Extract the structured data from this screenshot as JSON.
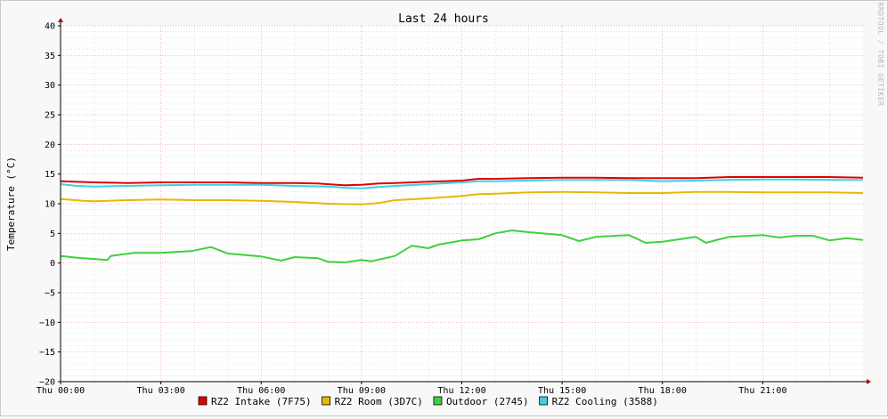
{
  "chart_data": {
    "type": "line",
    "title": "Last 24 hours",
    "ylabel": "Temperature (°C)",
    "watermark": "RRDTOOL / TOBI OETIKER",
    "ylim": [
      -20,
      40
    ],
    "y_ticks": [
      40,
      35,
      30,
      25,
      20,
      15,
      10,
      5,
      0,
      -5,
      -10,
      -15,
      -20
    ],
    "y_tick_labels": [
      "40",
      "35",
      "30",
      "25",
      "20",
      "15",
      "10",
      "5",
      "0",
      "−5",
      "−10",
      "−15",
      "−20"
    ],
    "xlim_hours": [
      0,
      24
    ],
    "x_ticks_hours": [
      0,
      3,
      6,
      9,
      12,
      15,
      18,
      21
    ],
    "x_tick_labels": [
      "Thu 00:00",
      "Thu 03:00",
      "Thu 06:00",
      "Thu 09:00",
      "Thu 12:00",
      "Thu 15:00",
      "Thu 18:00",
      "Thu 21:00"
    ],
    "grid": true,
    "legend_position": "bottom",
    "series": [
      {
        "name": "RZ2 Intake (7F75)",
        "color": "#e00000",
        "x": [
          0,
          1,
          2,
          3,
          4,
          5,
          6,
          7,
          7.7,
          8.5,
          9,
          9.5,
          10,
          11,
          12,
          12.5,
          13,
          14,
          15,
          16,
          17,
          18,
          19,
          20,
          21,
          22,
          23,
          24
        ],
        "y": [
          13.8,
          13.6,
          13.5,
          13.6,
          13.6,
          13.6,
          13.5,
          13.5,
          13.4,
          13.1,
          13.2,
          13.4,
          13.5,
          13.7,
          13.9,
          14.2,
          14.2,
          14.3,
          14.4,
          14.4,
          14.3,
          14.3,
          14.3,
          14.5,
          14.5,
          14.5,
          14.5,
          14.4
        ]
      },
      {
        "name": "RZ2 Room (3D7C)",
        "color": "#e8b800",
        "x": [
          0,
          0.7,
          1,
          2,
          3,
          4,
          5,
          6,
          7,
          8,
          9,
          9.5,
          10,
          11,
          12,
          12.5,
          13,
          14,
          15,
          16,
          17,
          18,
          19,
          20,
          21,
          22,
          23,
          24
        ],
        "y": [
          10.8,
          10.5,
          10.4,
          10.6,
          10.7,
          10.6,
          10.6,
          10.5,
          10.3,
          10.0,
          9.9,
          10.1,
          10.6,
          10.9,
          11.3,
          11.6,
          11.7,
          11.9,
          12.0,
          11.9,
          11.8,
          11.8,
          12.0,
          12.0,
          11.9,
          11.9,
          11.9,
          11.8
        ]
      },
      {
        "name": "Outdoor (2745)",
        "color": "#40d040",
        "x": [
          0,
          0.5,
          1.4,
          1.5,
          2.2,
          3,
          3.9,
          4.5,
          5,
          6,
          6.6,
          7,
          7.7,
          8,
          8.5,
          9,
          9.3,
          10,
          10.5,
          11,
          11.3,
          12,
          12.5,
          13,
          13.5,
          14,
          15,
          15.5,
          16,
          17,
          17.5,
          18,
          18.5,
          19,
          19.3,
          19.7,
          20,
          21,
          21.5,
          22,
          22.5,
          23,
          23.5,
          24
        ],
        "y": [
          1.2,
          0.9,
          0.5,
          1.2,
          1.7,
          1.7,
          2.0,
          2.7,
          1.6,
          1.1,
          0.4,
          1.0,
          0.8,
          0.2,
          0.1,
          0.5,
          0.3,
          1.2,
          2.9,
          2.5,
          3.1,
          3.8,
          4.0,
          5.0,
          5.5,
          5.2,
          4.7,
          3.7,
          4.4,
          4.7,
          3.4,
          3.6,
          4.0,
          4.4,
          3.4,
          4.0,
          4.4,
          4.7,
          4.3,
          4.6,
          4.6,
          3.8,
          4.2,
          3.9
        ]
      },
      {
        "name": "RZ2 Cooling (3588)",
        "color": "#40d0e0",
        "x": [
          0,
          0.5,
          1,
          2,
          3,
          4,
          5,
          6,
          7,
          8,
          8.5,
          9,
          9.5,
          10,
          11,
          12,
          12.5,
          13,
          14,
          15,
          16,
          17,
          18,
          19,
          20,
          21,
          22,
          23,
          24
        ],
        "y": [
          13.3,
          13.0,
          12.9,
          13.0,
          13.1,
          13.2,
          13.2,
          13.2,
          13.0,
          12.9,
          12.7,
          12.6,
          12.8,
          13.0,
          13.3,
          13.6,
          13.8,
          13.8,
          13.9,
          14.0,
          14.0,
          14.0,
          13.8,
          13.9,
          14.0,
          14.1,
          14.1,
          14.0,
          14.0
        ]
      }
    ]
  }
}
